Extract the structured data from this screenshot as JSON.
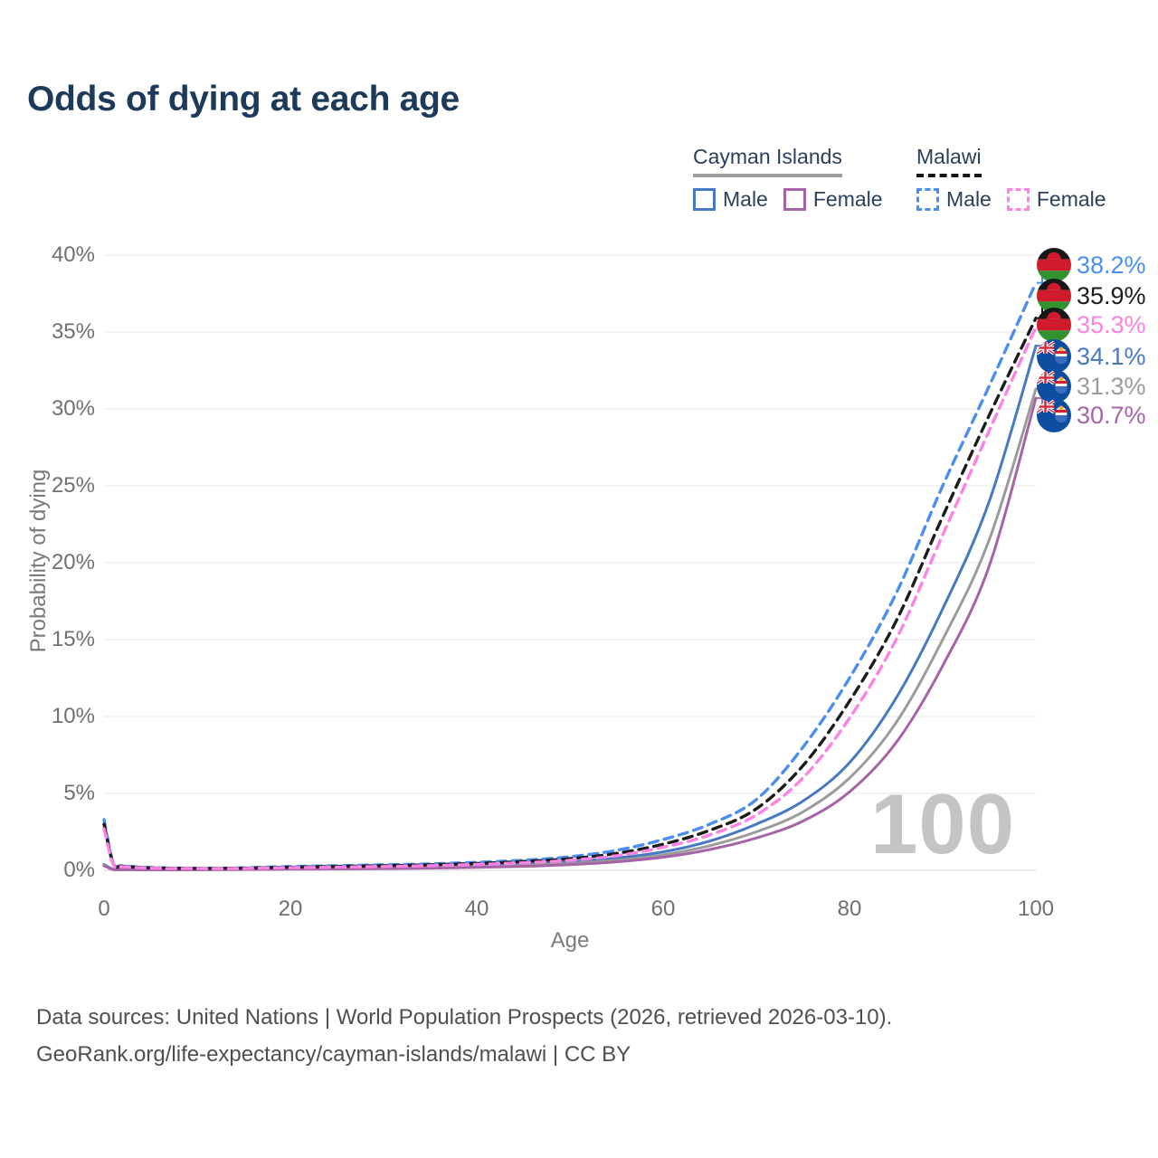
{
  "title": "Odds of dying at each age",
  "legend": {
    "groups": [
      {
        "label": "Cayman Islands",
        "underline": "solid",
        "items": [
          {
            "label": "Male",
            "color": "#4679c2",
            "style": "solid"
          },
          {
            "label": "Female",
            "color": "#a763a8",
            "style": "solid"
          }
        ]
      },
      {
        "label": "Malawi",
        "underline": "dashed",
        "items": [
          {
            "label": "Male",
            "color": "#4a8ff0",
            "style": "dashed"
          },
          {
            "label": "Female",
            "color": "#fd82e4",
            "style": "dashed"
          }
        ]
      }
    ]
  },
  "chart_data": {
    "type": "line",
    "title": "Odds of dying at each age",
    "xlabel": "Age",
    "ylabel": "Probability of dying",
    "xlim": [
      0,
      100
    ],
    "ylim": [
      0,
      40
    ],
    "grid": "horizontal",
    "x_ticks": [
      0,
      20,
      40,
      60,
      80,
      100
    ],
    "y_ticks": [
      {
        "v": 0,
        "label": "0%"
      },
      {
        "v": 5,
        "label": "5%"
      },
      {
        "v": 10,
        "label": "10%"
      },
      {
        "v": 15,
        "label": "15%"
      },
      {
        "v": 20,
        "label": "20%"
      },
      {
        "v": 25,
        "label": "25%"
      },
      {
        "v": 30,
        "label": "30%"
      },
      {
        "v": 35,
        "label": "35%"
      },
      {
        "v": 40,
        "label": "40%"
      }
    ],
    "ages": [
      0,
      1,
      2,
      5,
      10,
      15,
      20,
      25,
      30,
      35,
      40,
      45,
      50,
      55,
      60,
      65,
      70,
      75,
      80,
      85,
      90,
      95,
      100
    ],
    "series": [
      {
        "id": "cayman-islands-male",
        "country": "Cayman Islands",
        "sex": "Male",
        "style": "solid",
        "color": "#4679c2",
        "flag": "cayman",
        "end_label": "34.1%",
        "values": [
          0.38,
          0.06,
          0.05,
          0.04,
          0.05,
          0.08,
          0.12,
          0.15,
          0.18,
          0.22,
          0.28,
          0.38,
          0.55,
          0.8,
          1.2,
          1.9,
          3.0,
          4.5,
          7.0,
          11.2,
          17.0,
          24.0,
          34.1
        ]
      },
      {
        "id": "cayman-islands-both",
        "country": "Cayman Islands",
        "sex": "Both",
        "style": "solid",
        "color": "#9b9b9b",
        "flag": "cayman",
        "end_label": "31.3%",
        "values": [
          0.34,
          0.05,
          0.045,
          0.035,
          0.04,
          0.06,
          0.09,
          0.12,
          0.14,
          0.18,
          0.23,
          0.31,
          0.45,
          0.65,
          1.0,
          1.6,
          2.5,
          3.8,
          6.0,
          9.6,
          15.0,
          21.5,
          31.3
        ]
      },
      {
        "id": "cayman-islands-female",
        "country": "Cayman Islands",
        "sex": "Female",
        "style": "solid",
        "color": "#a763a8",
        "flag": "cayman",
        "end_label": "30.7%",
        "values": [
          0.3,
          0.045,
          0.04,
          0.03,
          0.035,
          0.05,
          0.07,
          0.09,
          0.11,
          0.14,
          0.19,
          0.26,
          0.37,
          0.55,
          0.85,
          1.35,
          2.1,
          3.2,
          5.1,
          8.3,
          13.3,
          19.8,
          30.7
        ]
      },
      {
        "id": "malawi-male",
        "country": "Malawi",
        "sex": "Male",
        "style": "dashed",
        "color": "#4a8ff0",
        "flag": "malawi",
        "end_label": "38.2%",
        "values": [
          3.3,
          0.45,
          0.3,
          0.18,
          0.13,
          0.16,
          0.25,
          0.3,
          0.36,
          0.42,
          0.52,
          0.66,
          0.88,
          1.3,
          2.0,
          3.0,
          4.6,
          8.0,
          12.5,
          18.0,
          25.0,
          31.5,
          38.2
        ]
      },
      {
        "id": "malawi-both",
        "country": "Malawi",
        "sex": "Both",
        "style": "dashed",
        "color": "#1c1c1c",
        "flag": "malawi",
        "end_label": "35.9%",
        "values": [
          3.0,
          0.4,
          0.27,
          0.16,
          0.12,
          0.14,
          0.2,
          0.25,
          0.3,
          0.36,
          0.45,
          0.57,
          0.76,
          1.1,
          1.7,
          2.6,
          4.0,
          6.8,
          11.0,
          16.2,
          23.0,
          29.6,
          35.9
        ]
      },
      {
        "id": "malawi-female",
        "country": "Malawi",
        "sex": "Female",
        "style": "dashed",
        "color": "#fd82e4",
        "flag": "malawi",
        "end_label": "35.3%",
        "values": [
          2.7,
          0.36,
          0.24,
          0.14,
          0.11,
          0.12,
          0.17,
          0.2,
          0.25,
          0.3,
          0.38,
          0.49,
          0.65,
          0.95,
          1.5,
          2.3,
          3.6,
          6.0,
          9.9,
          15.0,
          21.8,
          28.6,
          35.3
        ]
      }
    ],
    "legend_position": "top-right"
  },
  "watermark": "100",
  "footer": {
    "line1": "Data sources: United Nations | World Population Prospects (2026, retrieved 2026-03-10).",
    "line2": "GeoRank.org/life-expectancy/cayman-islands/malawi | CC BY"
  }
}
